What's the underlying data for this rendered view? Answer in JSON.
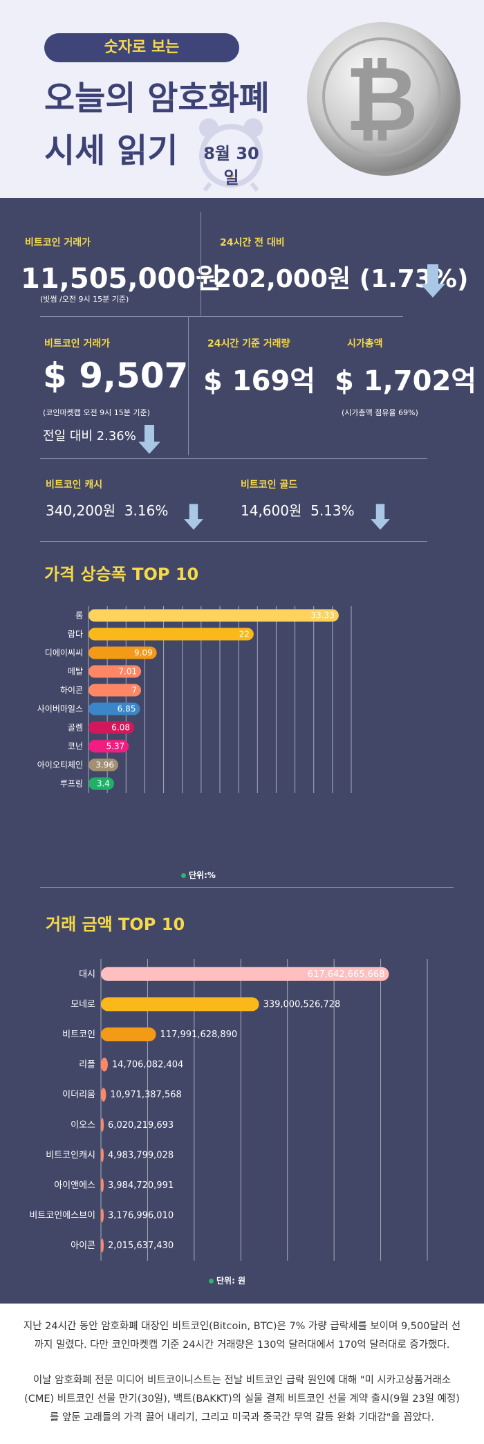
{
  "header": {
    "pill": "숫자로 보는",
    "title_line1": "오늘의 암호화폐",
    "title_line2": "시세 읽기",
    "date": "8월 30일"
  },
  "krw": {
    "label": "비트코인 거래가",
    "price": "11,505,000원",
    "note": "(빗썸 /오전 9시 15분 기준)",
    "change_label": "24시간 전 대비",
    "change_value": "202,000원 (1.73%)"
  },
  "usd": {
    "label": "비트코인 거래가",
    "price": "$ 9,507",
    "note": "(코인마켓캡 오전 9시 15분 기준)",
    "daily_change": "전일 대비 2.36%",
    "volume_label": "24시간 기준 거래량",
    "volume_value": "$ 169억",
    "mcap_label": "시가총액",
    "mcap_value": "$ 1,702억",
    "mcap_note": "(시가총액 점유율 69%)"
  },
  "forks": {
    "cash_label": "비트코인 캐시",
    "cash_value": "340,200원  3.16%",
    "gold_label": "비트코인 골드",
    "gold_value": "14,600원  5.13%"
  },
  "colors": {
    "panel": "#434767",
    "accent": "#f6da4a",
    "arrow": "#a8c8e6"
  },
  "chart_data": [
    {
      "type": "bar",
      "title": "가격 상승폭 TOP 10",
      "categories": [
        "롬",
        "람다",
        "디에이씨씨",
        "메탈",
        "하이콘",
        "사이버마일스",
        "골렘",
        "코넌",
        "아이오티체인",
        "루프링"
      ],
      "values": [
        33.33,
        22,
        9.09,
        7.01,
        7,
        6.85,
        6.08,
        5.37,
        3.96,
        3.4
      ],
      "value_labels": [
        "33.33",
        "22",
        "9.09",
        "7.01",
        "7",
        "6.85",
        "6.08",
        "5.37",
        "3.96",
        "3.4"
      ],
      "colors": [
        "#fdd35d",
        "#fbb81b",
        "#f39a16",
        "#ff8766",
        "#ff8766",
        "#3a86c8",
        "#d3175d",
        "#f21d81",
        "#a39074",
        "#21b06a"
      ],
      "xlim": [
        0,
        35
      ],
      "unit": "단위:%",
      "grid": true
    },
    {
      "type": "bar",
      "title": "거래 금액 TOP 10",
      "categories": [
        "대시",
        "모네로",
        "비트코인",
        "리플",
        "이더리움",
        "이오스",
        "비트코인캐시",
        "아이앤에스",
        "비트코인에스브이",
        "아이콘"
      ],
      "values": [
        617642665668,
        339000526728,
        117991628890,
        14706082404,
        10971387568,
        6020219693,
        4983799028,
        3984720991,
        3176996010,
        2015637430
      ],
      "value_labels": [
        "617,642,665,668",
        "339,000,526,728",
        "117,991,628,890",
        "14,706,082,404",
        "10,971,387,568",
        "6,020,219,693",
        "4,983,799,028",
        "3,984,720,991",
        "3,176,996,010",
        "2,015,637,430"
      ],
      "colors": [
        "#ffbfc0",
        "#fbb81b",
        "#f39a16",
        "#ff8766",
        "#ff8766",
        "#ff8766",
        "#ff8766",
        "#ff8766",
        "#ff8766",
        "#ff8766"
      ],
      "xlim": [
        0,
        700000000000
      ],
      "unit": "단위: 원",
      "grid": true
    }
  ],
  "footer": {
    "para1": "지난 24시간 동안 암호화폐 대장인 비트코인(Bitcoin, BTC)은 7% 가량 급락세를 보이며 9,500달러 선까지 밀렸다. 다만 코인마켓캡 기준 24시간 거래량은 130억 달러대에서 170억 달러대로 증가했다.",
    "para2": "이날 암호화폐 전문 미디어 비트코이니스트는 전날 비트코인 급락 원인에 대해 \"미 시카고상품거래소(CME) 비트코인 선물 만기(30일), 백트(BAKKT)의 실물 결제 비트코인 선물 계약 출시(9월 23일 예정)를 앞둔 고래들의 가격 끌어 내리기, 그리고 미국과 중국간 무역 갈등 완화 기대감\"을 꼽았다."
  }
}
